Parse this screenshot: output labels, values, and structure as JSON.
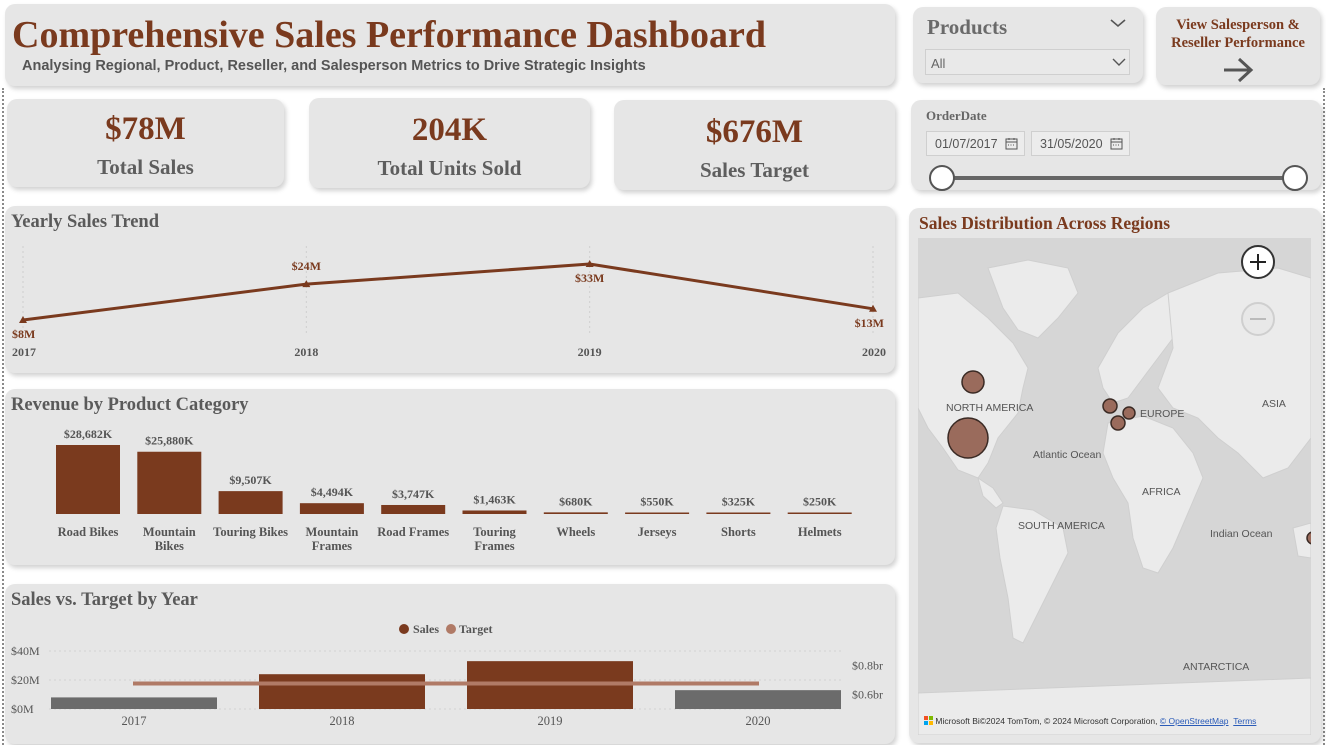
{
  "header": {
    "title": "Comprehensive Sales Performance Dashboard",
    "subtitle": "Analysing Regional, Product, Reseller, and Salesperson Metrics to Drive Strategic Insights"
  },
  "products_slicer": {
    "title": "Products",
    "value": "All"
  },
  "nav_button": {
    "label_line1": "View Salesperson &",
    "label_line2": "Reseller Performance"
  },
  "kpis": {
    "total_sales": {
      "value": "$78M",
      "label": "Total Sales"
    },
    "total_units": {
      "value": "204K",
      "label": "Total Units Sold"
    },
    "sales_target": {
      "value": "$676M",
      "label": "Sales Target"
    }
  },
  "date_slicer": {
    "title": "OrderDate",
    "start": "01/07/2017",
    "end": "31/05/2020"
  },
  "colors": {
    "brown": "#7a3a1e",
    "target": "#b07a66",
    "gray_bar": "#6b6b6b",
    "card": "#e6e6e6"
  },
  "chart_data": [
    {
      "id": "yearly_trend",
      "type": "line",
      "title": "Yearly Sales Trend",
      "categories": [
        "2017",
        "2018",
        "2019",
        "2020"
      ],
      "values": [
        8,
        24,
        33,
        13
      ],
      "data_labels": [
        "$8M",
        "$24M",
        "$33M",
        "$13M"
      ],
      "unit": "$M"
    },
    {
      "id": "product_category",
      "type": "bar",
      "title": "Revenue by Product Category",
      "categories": [
        "Road Bikes",
        "Mountain Bikes",
        "Touring Bikes",
        "Mountain Frames",
        "Road Frames",
        "Touring Frames",
        "Wheels",
        "Jerseys",
        "Shorts",
        "Helmets"
      ],
      "category_lines": [
        [
          "Road Bikes"
        ],
        [
          "Mountain",
          "Bikes"
        ],
        [
          "Touring Bikes"
        ],
        [
          "Mountain",
          "Frames"
        ],
        [
          "Road Frames"
        ],
        [
          "Touring",
          "Frames"
        ],
        [
          "Wheels"
        ],
        [
          "Jerseys"
        ],
        [
          "Shorts"
        ],
        [
          "Helmets"
        ]
      ],
      "values": [
        28682,
        25880,
        9507,
        4494,
        3747,
        1463,
        680,
        550,
        325,
        250
      ],
      "data_labels": [
        "$28,682K",
        "$25,880K",
        "$9,507K",
        "$4,494K",
        "$3,747K",
        "$1,463K",
        "$680K",
        "$550K",
        "$325K",
        "$250K"
      ],
      "unit": "$K"
    },
    {
      "id": "sales_vs_target",
      "type": "bar",
      "title": "Sales vs. Target by Year",
      "categories": [
        "2017",
        "2018",
        "2019",
        "2020"
      ],
      "series": [
        {
          "name": "Sales",
          "values": [
            8,
            24,
            33,
            13
          ],
          "unit": "$M",
          "axis": "left",
          "bar_colors": [
            "#6b6b6b",
            "#7a3a1e",
            "#7a3a1e",
            "#6b6b6b"
          ]
        },
        {
          "name": "Target",
          "values": [
            0.676,
            0.676,
            0.676,
            0.676
          ],
          "unit": "$bn",
          "axis": "right"
        }
      ],
      "left_ticks": [
        "$0M",
        "$20M",
        "$40M"
      ],
      "left_ylim": [
        0,
        40
      ],
      "right_ticks": [
        "$0.6br",
        "$0.8br"
      ],
      "right_ylim": [
        0.5,
        0.9
      ],
      "legend": "top-center"
    }
  ],
  "map": {
    "title": "Sales Distribution Across Regions",
    "labels": {
      "north_america": "NORTH AMERICA",
      "europe": "EUROPE",
      "asia": "ASIA",
      "atlantic": "Atlantic Ocean",
      "africa": "AFRICA",
      "south_america": "SOUTH AMERICA",
      "indian": "Indian Ocean",
      "antarctica": "ANTARCTICA"
    },
    "attribution": {
      "brand": "Microsoft Bi",
      "text": "©2024 TomTom, © 2024 Microsoft Corporation,",
      "osm": "© OpenStreetMap",
      "terms": "Terms"
    }
  }
}
